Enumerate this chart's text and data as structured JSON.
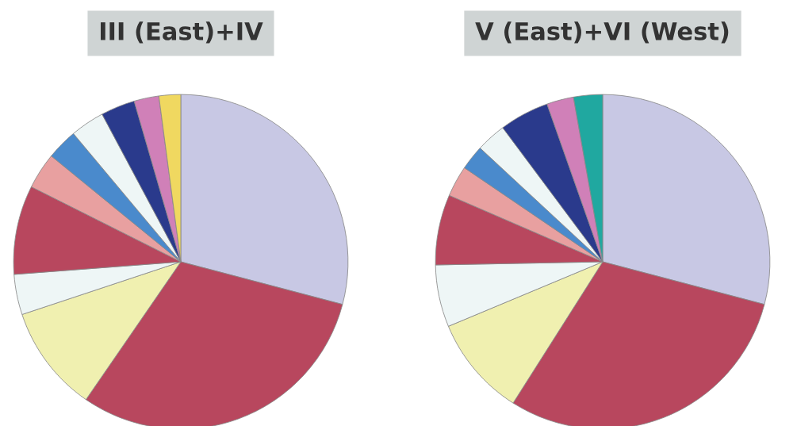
{
  "chart_data": [
    {
      "type": "pie",
      "title": "III (East)+IV",
      "categories": [
        null,
        null,
        null,
        null,
        null,
        null,
        null,
        null,
        null,
        null,
        null
      ],
      "values": [
        29.1,
        30.5,
        10.3,
        3.9,
        8.6,
        3.5,
        3.0,
        3.3,
        3.3,
        2.4,
        2.1
      ],
      "colors": [
        "#c8c8e4",
        "#b8475e",
        "#f0f0b0",
        "#eef6f6",
        "#b8475e",
        "#e8a0a0",
        "#4a8acc",
        "#eef6f6",
        "#2a3a8c",
        "#d080b8",
        "#f0d860"
      ]
    },
    {
      "type": "pie",
      "title": "V (East)+VI (West)",
      "categories": [
        null,
        null,
        null,
        null,
        null,
        null,
        null,
        null,
        null,
        null,
        null
      ],
      "values": [
        29.1,
        29.9,
        9.7,
        6.0,
        6.8,
        3.0,
        2.4,
        2.9,
        4.8,
        2.6,
        2.8
      ],
      "colors": [
        "#c8c8e4",
        "#b8475e",
        "#f0f0b0",
        "#eef6f6",
        "#b8475e",
        "#e8a0a0",
        "#4a8acc",
        "#eef6f6",
        "#2a3a8c",
        "#d080b8",
        "#20a8a0"
      ]
    }
  ]
}
